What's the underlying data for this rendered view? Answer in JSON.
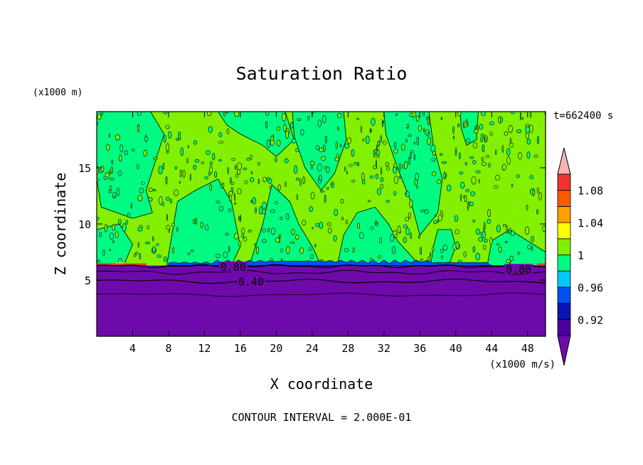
{
  "chart_data": {
    "type": "heatmap",
    "title": "Saturation Ratio",
    "xlabel": "X coordinate",
    "ylabel": "Z coordinate",
    "x_unit": "(x1000 m/s)",
    "y_unit": "(x1000 m)",
    "time_label": "t=662400 s",
    "footer": "CONTOUR INTERVAL = 2.000E-01",
    "xlim": [
      0,
      50
    ],
    "ylim": [
      0,
      20
    ],
    "x_ticks": [
      "4",
      "8",
      "12",
      "16",
      "20",
      "24",
      "28",
      "32",
      "36",
      "40",
      "44",
      "48"
    ],
    "x_tick_values": [
      4,
      8,
      12,
      16,
      20,
      24,
      28,
      32,
      36,
      40,
      44,
      48
    ],
    "y_ticks": [
      "5",
      "10",
      "15"
    ],
    "y_tick_values": [
      5,
      10,
      15
    ],
    "contour_labels": [
      {
        "text": "0.80",
        "x": 15.2,
        "z": 6.2
      },
      {
        "text": "0.40",
        "x": 17.2,
        "z": 4.9
      },
      {
        "text": "0.80",
        "x": 47.0,
        "z": 6.0
      }
    ],
    "colorbar": {
      "levels": [
        0.9,
        0.92,
        0.94,
        0.96,
        0.98,
        1.0,
        1.02,
        1.04,
        1.06,
        1.08,
        1.1
      ],
      "labels": [
        "0.92",
        "0.96",
        "1",
        "1.04",
        "1.08"
      ],
      "label_values": [
        0.92,
        0.96,
        1.0,
        1.04,
        1.08
      ],
      "colors": [
        "#4b00a0",
        "#0a14b4",
        "#0050f0",
        "#00c8ff",
        "#00fa82",
        "#82f000",
        "#ffff00",
        "#ffa000",
        "#ff5a00",
        "#f03232"
      ],
      "under_color": "#6e0aaa",
      "over_color": "#f5b4b4"
    },
    "regions": {
      "lower_atmosphere_color": "#6e0aaa",
      "upper_background_color": "#82f000",
      "patch_color": "#00fa82",
      "boundary_height": 6.3,
      "light_band_top": 3.7
    }
  }
}
